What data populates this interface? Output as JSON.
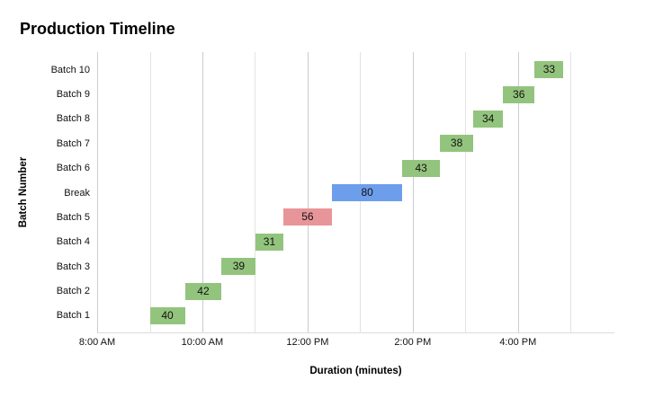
{
  "title": "Production Timeline",
  "x_axis": {
    "label": "Duration (minutes)",
    "tick_labels": [
      "8:00 AM",
      "10:00 AM",
      "12:00 PM",
      "2:00 PM",
      "4:00 PM"
    ]
  },
  "y_axis": {
    "label": "Batch Number",
    "tick_labels_top_to_bottom": [
      "Batch 10",
      "Batch 9",
      "Batch 8",
      "Batch 7",
      "Batch 6",
      "Break",
      "Batch 5",
      "Batch 4",
      "Batch 3",
      "Batch 2",
      "Batch 1"
    ]
  },
  "colors": {
    "batch_bar_green": "#93c47d",
    "batch5_bar_red": "#e8959a",
    "break_bar_blue": "#6d9eeb",
    "gridline_minor": "#e3e3e3",
    "gridline_major": "#c9cdd2",
    "axis_line": "#dcdcdc",
    "text": "#111111"
  },
  "chart_data": {
    "type": "bar",
    "subtype": "gantt-horizontal",
    "title": "Production Timeline",
    "xlabel": "Duration (minutes)",
    "ylabel": "Batch Number",
    "grid": "vertical hourly gridlines",
    "legend": "none",
    "x_axis": {
      "domain_minutes_from_8am": [
        0,
        590
      ],
      "minor_gridline_every_minutes": 60,
      "major_ticks": [
        {
          "label": "8:00 AM",
          "minutes_from_8am": 0
        },
        {
          "label": "10:00 AM",
          "minutes_from_8am": 120
        },
        {
          "label": "12:00 PM",
          "minutes_from_8am": 240
        },
        {
          "label": "2:00 PM",
          "minutes_from_8am": 360
        },
        {
          "label": "4:00 PM",
          "minutes_from_8am": 480
        }
      ]
    },
    "rows_top_to_bottom": [
      {
        "label": "Batch 10",
        "duration_min": 33,
        "start_min_from_8am": 499,
        "start": "4:19 PM",
        "end": "4:52 PM",
        "color": "#93c47d"
      },
      {
        "label": "Batch 9",
        "duration_min": 36,
        "start_min_from_8am": 463,
        "start": "3:43 PM",
        "end": "4:19 PM",
        "color": "#93c47d"
      },
      {
        "label": "Batch 8",
        "duration_min": 34,
        "start_min_from_8am": 429,
        "start": "3:09 PM",
        "end": "3:43 PM",
        "color": "#93c47d"
      },
      {
        "label": "Batch 7",
        "duration_min": 38,
        "start_min_from_8am": 391,
        "start": "2:31 PM",
        "end": "3:09 PM",
        "color": "#93c47d"
      },
      {
        "label": "Batch 6",
        "duration_min": 43,
        "start_min_from_8am": 348,
        "start": "1:48 PM",
        "end": "2:31 PM",
        "color": "#93c47d"
      },
      {
        "label": "Break",
        "duration_min": 80,
        "start_min_from_8am": 268,
        "start": "12:28 PM",
        "end": "1:48 PM",
        "color": "#6d9eeb"
      },
      {
        "label": "Batch 5",
        "duration_min": 56,
        "start_min_from_8am": 212,
        "start": "11:32 AM",
        "end": "12:28 PM",
        "color": "#e8959a"
      },
      {
        "label": "Batch 4",
        "duration_min": 31,
        "start_min_from_8am": 181,
        "start": "11:01 AM",
        "end": "11:32 AM",
        "color": "#93c47d"
      },
      {
        "label": "Batch 3",
        "duration_min": 39,
        "start_min_from_8am": 142,
        "start": "10:22 AM",
        "end": "11:01 AM",
        "color": "#93c47d"
      },
      {
        "label": "Batch 2",
        "duration_min": 42,
        "start_min_from_8am": 100,
        "start": "9:40 AM",
        "end": "10:22 AM",
        "color": "#93c47d"
      },
      {
        "label": "Batch 1",
        "duration_min": 40,
        "start_min_from_8am": 60,
        "start": "9:00 AM",
        "end": "9:40 AM",
        "color": "#93c47d"
      }
    ]
  }
}
